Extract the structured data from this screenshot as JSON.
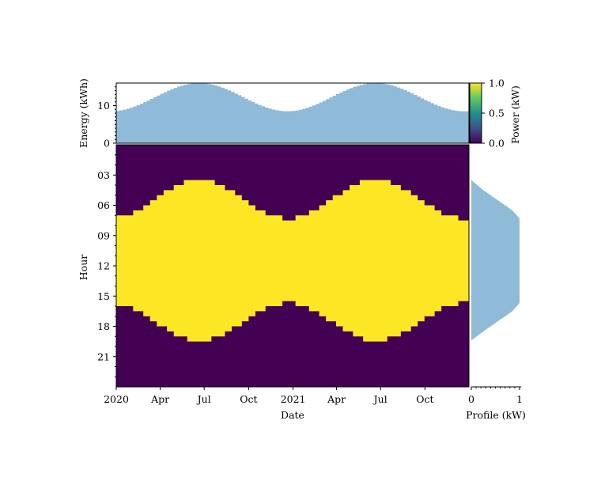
{
  "chart_data": [
    {
      "type": "area",
      "title": "",
      "xlabel": "",
      "ylabel": "Energy (kWh)",
      "ylim": [
        0,
        16
      ],
      "yticks": [
        0,
        10
      ],
      "yticklabels": [
        "0",
        "10"
      ],
      "xlim": [
        "2020-01-01",
        "2021-12-31"
      ],
      "fill_color": "#8fbbd9",
      "series": [
        {
          "name": "",
          "x": [
            "2020-01-01",
            "2020-06-21",
            "2020-12-21",
            "2021-06-21",
            "2021-12-31"
          ],
          "y": [
            8.5,
            16.0,
            8.3,
            16.0,
            8.5
          ],
          "shape": "seasonal-daylength"
        }
      ]
    },
    {
      "type": "heatmap",
      "title": "",
      "xlabel": "Date",
      "ylabel": "Hour",
      "xlim": [
        "2020-01-01",
        "2021-12-31"
      ],
      "ylim": [
        0,
        24
      ],
      "xticks": [
        "2020-01-01",
        "2020-04-01",
        "2020-07-01",
        "2020-10-01",
        "2021-01-01",
        "2021-04-01",
        "2021-07-01",
        "2021-10-01"
      ],
      "xticklabels": [
        "2020",
        "Apr",
        "Jul",
        "Oct",
        "2021",
        "Apr",
        "Jul",
        "Oct"
      ],
      "yticks": [
        3,
        6,
        9,
        12,
        15,
        18,
        21
      ],
      "yticklabels": [
        "03",
        "06",
        "09",
        "12",
        "15",
        "18",
        "21"
      ],
      "colormap": "viridis",
      "value_low": 0.0,
      "value_high": 1.0,
      "low_color": "#440154",
      "high_color": "#fde725",
      "on_hours": {
        "sunrise_winter_hour": 7.3,
        "sunrise_summer_hour": 3.5,
        "sunset_winter_hour": 15.7,
        "sunset_summer_hour": 19.4,
        "summer_peak_date": "2020-06-21",
        "winter_low_date": "2020-12-21"
      }
    },
    {
      "type": "area",
      "title": "",
      "xlabel": "Profile (kW)",
      "ylabel": "",
      "xlim": [
        0,
        1
      ],
      "xticks": [
        0,
        1
      ],
      "xticklabels": [
        "0",
        "1"
      ],
      "fill_color": "#8fbbd9",
      "series": [
        {
          "name": "",
          "hour": [
            3.5,
            4.5,
            5.5,
            6.5,
            7.3,
            15.7,
            16.5,
            17.5,
            18.5,
            19.4
          ],
          "value": [
            0.0,
            0.25,
            0.55,
            0.85,
            1.0,
            1.0,
            0.85,
            0.55,
            0.25,
            0.0
          ]
        }
      ]
    },
    {
      "type": "colorbar",
      "label": "Power (kW)",
      "range": [
        0.0,
        1.0
      ],
      "ticks": [
        0.0,
        0.5,
        1.0
      ],
      "ticklabels": [
        "0.0",
        "0.5",
        "1.0"
      ],
      "colormap": "viridis"
    }
  ]
}
